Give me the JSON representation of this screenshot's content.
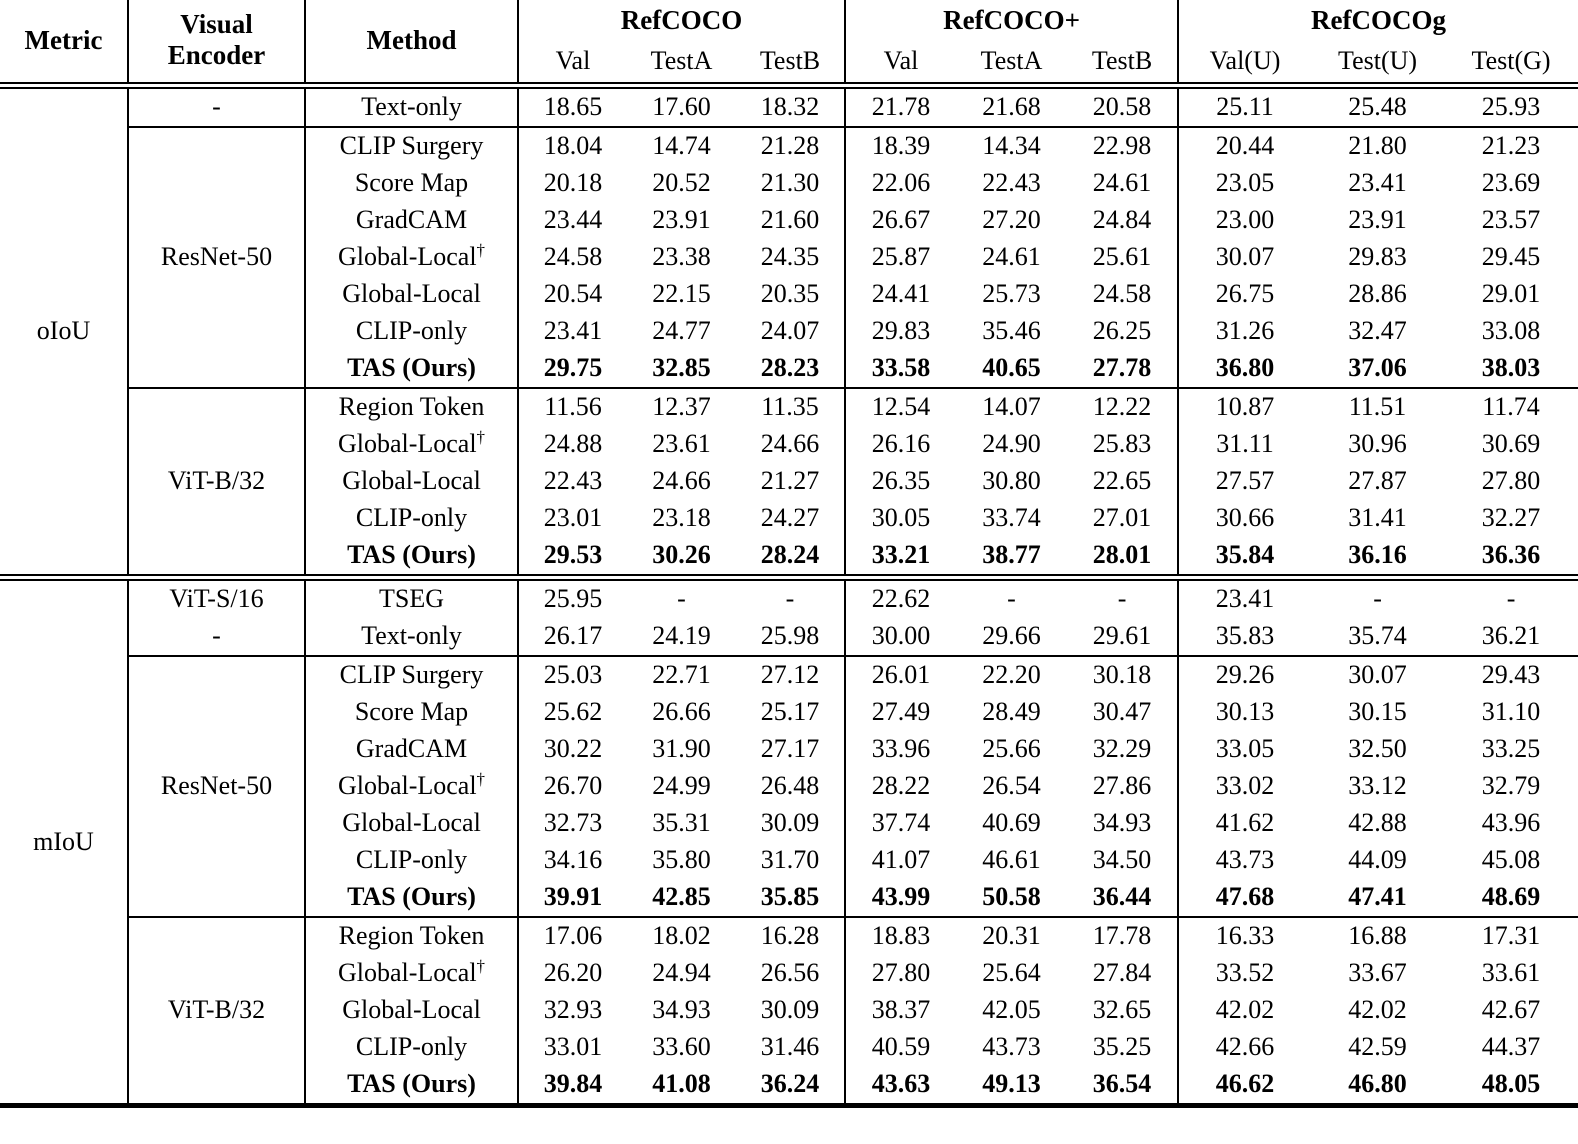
{
  "table": {
    "headers": {
      "metric": "Metric",
      "visual_encoder": "Visual Encoder",
      "method": "Method",
      "groups": [
        {
          "label": "RefCOCO",
          "subcols": [
            "Val",
            "TestA",
            "TestB"
          ]
        },
        {
          "label": "RefCOCO+",
          "subcols": [
            "Val",
            "TestA",
            "TestB"
          ]
        },
        {
          "label": "RefCOCOg",
          "subcols": [
            "Val(U)",
            "Test(U)",
            "Test(G)"
          ]
        }
      ]
    },
    "sections": [
      {
        "metric": "oIoU",
        "groups": [
          {
            "encoder": null,
            "rows": [
              {
                "encoder": "-",
                "method": "Text-only",
                "values": [
                  "18.65",
                  "17.60",
                  "18.32",
                  "21.78",
                  "21.68",
                  "20.58",
                  "25.11",
                  "25.48",
                  "25.93"
                ]
              }
            ]
          },
          {
            "encoder": "ResNet-50",
            "rows": [
              {
                "method": "CLIP Surgery",
                "values": [
                  "18.04",
                  "14.74",
                  "21.28",
                  "18.39",
                  "14.34",
                  "22.98",
                  "20.44",
                  "21.80",
                  "21.23"
                ]
              },
              {
                "method": "Score Map",
                "values": [
                  "20.18",
                  "20.52",
                  "21.30",
                  "22.06",
                  "22.43",
                  "24.61",
                  "23.05",
                  "23.41",
                  "23.69"
                ]
              },
              {
                "method": "GradCAM",
                "values": [
                  "23.44",
                  "23.91",
                  "21.60",
                  "26.67",
                  "27.20",
                  "24.84",
                  "23.00",
                  "23.91",
                  "23.57"
                ]
              },
              {
                "method": "Global-Local",
                "sup": "†",
                "values": [
                  "24.58",
                  "23.38",
                  "24.35",
                  "25.87",
                  "24.61",
                  "25.61",
                  "30.07",
                  "29.83",
                  "29.45"
                ]
              },
              {
                "method": "Global-Local",
                "values": [
                  "20.54",
                  "22.15",
                  "20.35",
                  "24.41",
                  "25.73",
                  "24.58",
                  "26.75",
                  "28.86",
                  "29.01"
                ]
              },
              {
                "method": "CLIP-only",
                "values": [
                  "23.41",
                  "24.77",
                  "24.07",
                  "29.83",
                  "35.46",
                  "26.25",
                  "31.26",
                  "32.47",
                  "33.08"
                ]
              },
              {
                "method": "TAS (Ours)",
                "bold": true,
                "values": [
                  "29.75",
                  "32.85",
                  "28.23",
                  "33.58",
                  "40.65",
                  "27.78",
                  "36.80",
                  "37.06",
                  "38.03"
                ]
              }
            ]
          },
          {
            "encoder": "ViT-B/32",
            "rows": [
              {
                "method": "Region Token",
                "values": [
                  "11.56",
                  "12.37",
                  "11.35",
                  "12.54",
                  "14.07",
                  "12.22",
                  "10.87",
                  "11.51",
                  "11.74"
                ]
              },
              {
                "method": "Global-Local",
                "sup": "†",
                "values": [
                  "24.88",
                  "23.61",
                  "24.66",
                  "26.16",
                  "24.90",
                  "25.83",
                  "31.11",
                  "30.96",
                  "30.69"
                ]
              },
              {
                "method": "Global-Local",
                "values": [
                  "22.43",
                  "24.66",
                  "21.27",
                  "26.35",
                  "30.80",
                  "22.65",
                  "27.57",
                  "27.87",
                  "27.80"
                ]
              },
              {
                "method": "CLIP-only",
                "values": [
                  "23.01",
                  "23.18",
                  "24.27",
                  "30.05",
                  "33.74",
                  "27.01",
                  "30.66",
                  "31.41",
                  "32.27"
                ]
              },
              {
                "method": "TAS (Ours)",
                "bold": true,
                "values": [
                  "29.53",
                  "30.26",
                  "28.24",
                  "33.21",
                  "38.77",
                  "28.01",
                  "35.84",
                  "36.16",
                  "36.36"
                ]
              }
            ]
          }
        ]
      },
      {
        "metric": "mIoU",
        "groups": [
          {
            "encoder": null,
            "rows": [
              {
                "encoder": "ViT-S/16",
                "method": "TSEG",
                "values": [
                  "25.95",
                  "-",
                  "-",
                  "22.62",
                  "-",
                  "-",
                  "23.41",
                  "-",
                  "-"
                ]
              },
              {
                "encoder": "-",
                "method": "Text-only",
                "values": [
                  "26.17",
                  "24.19",
                  "25.98",
                  "30.00",
                  "29.66",
                  "29.61",
                  "35.83",
                  "35.74",
                  "36.21"
                ]
              }
            ]
          },
          {
            "encoder": "ResNet-50",
            "rows": [
              {
                "method": "CLIP Surgery",
                "values": [
                  "25.03",
                  "22.71",
                  "27.12",
                  "26.01",
                  "22.20",
                  "30.18",
                  "29.26",
                  "30.07",
                  "29.43"
                ]
              },
              {
                "method": "Score Map",
                "values": [
                  "25.62",
                  "26.66",
                  "25.17",
                  "27.49",
                  "28.49",
                  "30.47",
                  "30.13",
                  "30.15",
                  "31.10"
                ]
              },
              {
                "method": "GradCAM",
                "values": [
                  "30.22",
                  "31.90",
                  "27.17",
                  "33.96",
                  "25.66",
                  "32.29",
                  "33.05",
                  "32.50",
                  "33.25"
                ]
              },
              {
                "method": "Global-Local",
                "sup": "†",
                "values": [
                  "26.70",
                  "24.99",
                  "26.48",
                  "28.22",
                  "26.54",
                  "27.86",
                  "33.02",
                  "33.12",
                  "32.79"
                ]
              },
              {
                "method": "Global-Local",
                "values": [
                  "32.73",
                  "35.31",
                  "30.09",
                  "37.74",
                  "40.69",
                  "34.93",
                  "41.62",
                  "42.88",
                  "43.96"
                ]
              },
              {
                "method": "CLIP-only",
                "values": [
                  "34.16",
                  "35.80",
                  "31.70",
                  "41.07",
                  "46.61",
                  "34.50",
                  "43.73",
                  "44.09",
                  "45.08"
                ]
              },
              {
                "method": "TAS (Ours)",
                "bold": true,
                "values": [
                  "39.91",
                  "42.85",
                  "35.85",
                  "43.99",
                  "50.58",
                  "36.44",
                  "47.68",
                  "47.41",
                  "48.69"
                ]
              }
            ]
          },
          {
            "encoder": "ViT-B/32",
            "rows": [
              {
                "method": "Region Token",
                "values": [
                  "17.06",
                  "18.02",
                  "16.28",
                  "18.83",
                  "20.31",
                  "17.78",
                  "16.33",
                  "16.88",
                  "17.31"
                ]
              },
              {
                "method": "Global-Local",
                "sup": "†",
                "values": [
                  "26.20",
                  "24.94",
                  "26.56",
                  "27.80",
                  "25.64",
                  "27.84",
                  "33.52",
                  "33.67",
                  "33.61"
                ]
              },
              {
                "method": "Global-Local",
                "values": [
                  "32.93",
                  "34.93",
                  "30.09",
                  "38.37",
                  "42.05",
                  "32.65",
                  "42.02",
                  "42.02",
                  "42.67"
                ]
              },
              {
                "method": "CLIP-only",
                "values": [
                  "33.01",
                  "33.60",
                  "31.46",
                  "40.59",
                  "43.73",
                  "35.25",
                  "42.66",
                  "42.59",
                  "44.37"
                ]
              },
              {
                "method": "TAS (Ours)",
                "bold": true,
                "values": [
                  "39.84",
                  "41.08",
                  "36.24",
                  "43.63",
                  "49.13",
                  "36.54",
                  "46.62",
                  "46.80",
                  "48.05"
                ]
              }
            ]
          }
        ]
      }
    ]
  }
}
